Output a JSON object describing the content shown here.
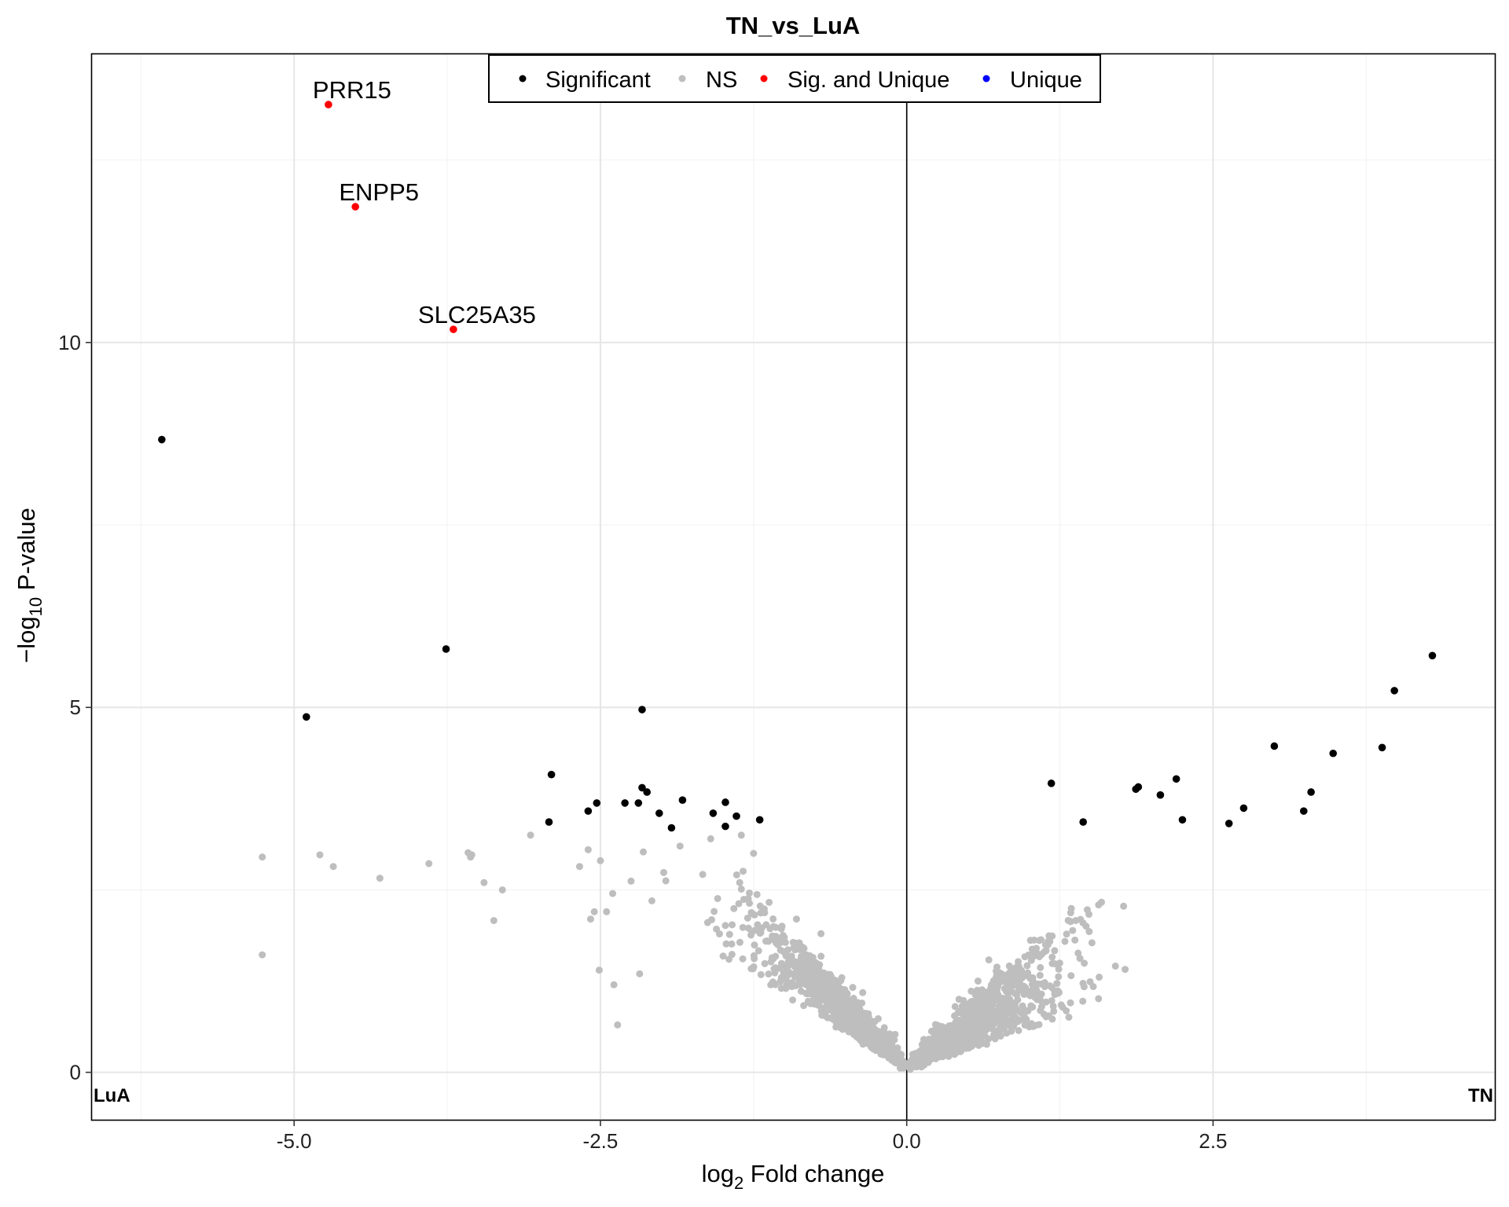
{
  "chart_data": {
    "type": "scatter",
    "title": "TN_vs_LuA",
    "xlabel": {
      "prefix": "log",
      "sub": "2",
      "suffix": " Fold change"
    },
    "ylabel": {
      "prefix": "−log",
      "sub": "10",
      "suffix": " P-value"
    },
    "xlim": [
      -6.65,
      4.8
    ],
    "ylim": [
      -0.65,
      13.95
    ],
    "xticks": [
      {
        "v": -5.0,
        "label": "-5.0"
      },
      {
        "v": -2.5,
        "label": "-2.5"
      },
      {
        "v": 0.0,
        "label": "0.0"
      },
      {
        "v": 2.5,
        "label": "2.5"
      }
    ],
    "yticks": [
      {
        "v": 0,
        "label": "0"
      },
      {
        "v": 5,
        "label": "5"
      },
      {
        "v": 10,
        "label": "10"
      }
    ],
    "grid": true,
    "vline_x": 0,
    "corner_labels": {
      "left": "LuA",
      "right": "TN"
    },
    "legend": {
      "position": "top",
      "items": [
        {
          "label": "Significant",
          "color": "#000000"
        },
        {
          "label": "NS",
          "color": "#bebebe"
        },
        {
          "label": "Sig. and Unique",
          "color": "#ff0000"
        },
        {
          "label": "Unique",
          "color": "#0000ff"
        }
      ]
    },
    "series": [
      {
        "name": "Significant",
        "color": "#000000",
        "points": [
          [
            -6.08,
            8.67
          ],
          [
            -4.9,
            4.87
          ],
          [
            -3.76,
            5.8
          ],
          [
            -2.16,
            4.97
          ],
          [
            -2.9,
            4.08
          ],
          [
            -2.92,
            3.43
          ],
          [
            -2.6,
            3.58
          ],
          [
            -2.53,
            3.69
          ],
          [
            -2.3,
            3.69
          ],
          [
            -2.19,
            3.69
          ],
          [
            -2.16,
            3.9
          ],
          [
            -2.12,
            3.84
          ],
          [
            -2.02,
            3.55
          ],
          [
            -1.92,
            3.35
          ],
          [
            -1.83,
            3.73
          ],
          [
            -1.58,
            3.55
          ],
          [
            -1.48,
            3.7
          ],
          [
            -1.48,
            3.37
          ],
          [
            -1.39,
            3.51
          ],
          [
            -1.2,
            3.46
          ],
          [
            1.18,
            3.96
          ],
          [
            1.44,
            3.43
          ],
          [
            1.87,
            3.88
          ],
          [
            1.89,
            3.91
          ],
          [
            2.07,
            3.8
          ],
          [
            2.2,
            4.02
          ],
          [
            2.25,
            3.46
          ],
          [
            2.63,
            3.41
          ],
          [
            2.75,
            3.62
          ],
          [
            3.0,
            4.47
          ],
          [
            3.24,
            3.58
          ],
          [
            3.3,
            3.84
          ],
          [
            3.48,
            4.37
          ],
          [
            3.88,
            4.45
          ],
          [
            3.98,
            5.23
          ],
          [
            4.29,
            5.71
          ]
        ]
      },
      {
        "name": "Sig. and Unique",
        "color": "#ff0000",
        "points": [
          [
            -4.72,
            13.26
          ],
          [
            -4.5,
            11.86
          ],
          [
            -3.7,
            10.18
          ]
        ],
        "labels": [
          "PRR15",
          "ENPP5",
          "SLC25A35"
        ]
      },
      {
        "name": "NS",
        "color": "#bebebe",
        "points": [
          [
            -5.26,
            2.95
          ],
          [
            -5.26,
            1.61
          ],
          [
            -4.79,
            2.98
          ],
          [
            -4.68,
            2.82
          ],
          [
            -4.3,
            2.66
          ],
          [
            -3.9,
            2.86
          ],
          [
            -3.58,
            3.01
          ],
          [
            -3.56,
            2.95
          ],
          [
            -3.45,
            2.6
          ],
          [
            -3.37,
            2.08
          ],
          [
            -3.3,
            2.5
          ],
          [
            -3.07,
            3.25
          ],
          [
            -2.67,
            2.82
          ],
          [
            -2.6,
            3.05
          ],
          [
            -2.58,
            2.1
          ],
          [
            -2.55,
            2.2
          ],
          [
            -2.51,
            1.4
          ],
          [
            -2.45,
            2.2
          ],
          [
            -2.4,
            2.45
          ],
          [
            -2.39,
            1.2
          ],
          [
            -2.36,
            0.65
          ],
          [
            -2.25,
            2.62
          ],
          [
            -2.18,
            1.35
          ],
          [
            -2.15,
            3.02
          ],
          [
            -2.08,
            2.35
          ],
          [
            -3.55,
            2.98
          ],
          [
            -2.5,
            2.9
          ],
          [
            -1.85,
            3.1
          ],
          [
            -1.6,
            3.2
          ],
          [
            -1.35,
            3.25
          ],
          [
            -1.25,
            3.0
          ],
          [
            -0.9,
            2.1
          ],
          [
            -0.7,
            1.9
          ]
        ],
        "cloud": true
      },
      {
        "name": "Unique",
        "color": "#0000ff",
        "points": []
      }
    ]
  }
}
